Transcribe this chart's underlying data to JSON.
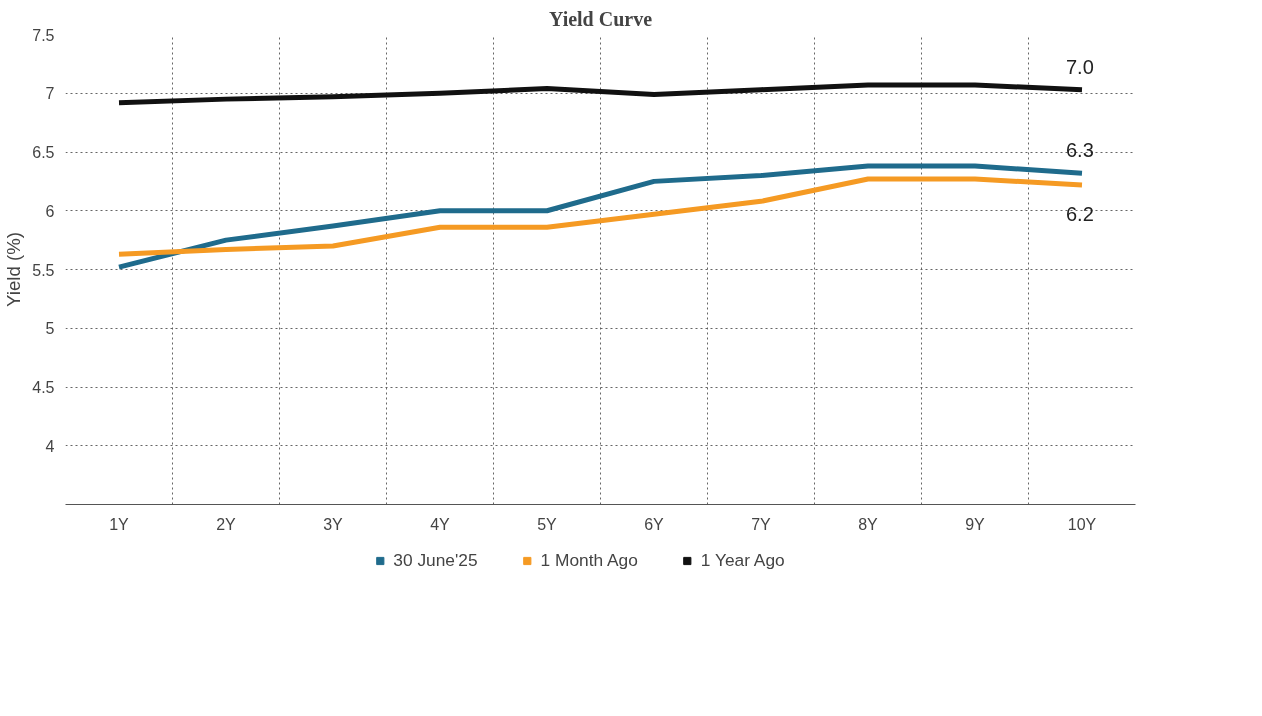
{
  "chart_data": {
    "type": "line",
    "title": "Yield Curve",
    "ylabel": "Yield (%)",
    "categories": [
      "1Y",
      "2Y",
      "3Y",
      "4Y",
      "5Y",
      "6Y",
      "7Y",
      "8Y",
      "9Y",
      "10Y"
    ],
    "ylim": [
      3.5,
      7.5
    ],
    "yticks": [
      4,
      4.5,
      5,
      5.5,
      6,
      6.5,
      7,
      7.5
    ],
    "grid": true,
    "legend": "bottom",
    "line_style": "solid",
    "marker": "none",
    "series": [
      {
        "name": "30 June'25",
        "color": "#1f6b8c",
        "values": [
          5.52,
          5.75,
          5.87,
          6.0,
          6.0,
          6.25,
          6.3,
          6.38,
          6.38,
          6.32
        ],
        "value_labels": [
          null,
          null,
          null,
          null,
          null,
          null,
          null,
          null,
          null,
          "6.3"
        ]
      },
      {
        "name": "1 Month Ago",
        "color": "#f59a23",
        "values": [
          5.63,
          5.67,
          5.7,
          5.86,
          5.86,
          5.97,
          6.08,
          6.27,
          6.27,
          6.22
        ],
        "value_labels": [
          null,
          null,
          null,
          null,
          null,
          null,
          null,
          null,
          null,
          "6.2"
        ]
      },
      {
        "name": "1 Year Ago",
        "color": "#111111",
        "values": [
          6.92,
          6.95,
          6.97,
          7.0,
          7.04,
          6.99,
          7.03,
          7.07,
          7.07,
          7.03
        ],
        "value_labels": [
          null,
          null,
          null,
          null,
          null,
          null,
          null,
          null,
          null,
          "7.0"
        ]
      }
    ]
  }
}
